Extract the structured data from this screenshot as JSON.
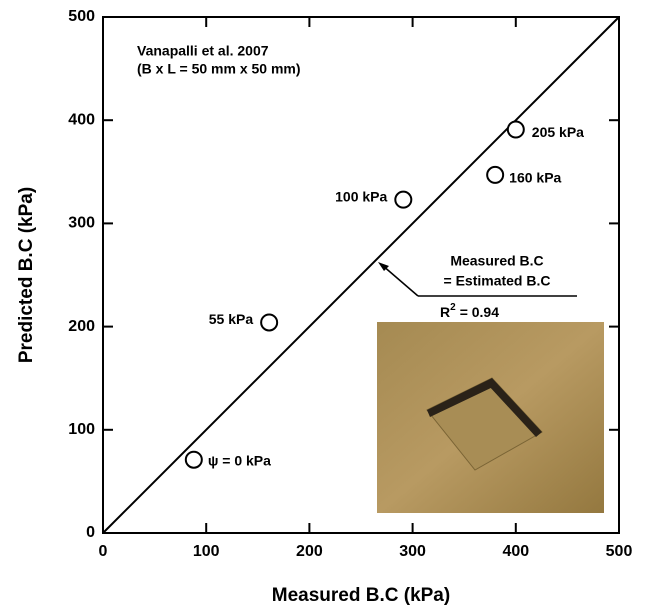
{
  "chart_data": {
    "type": "scatter",
    "x_label": "Measured B.C (kPa)",
    "y_label": "Predicted B.C (kPa)",
    "x": [
      88,
      161,
      291,
      380,
      400
    ],
    "values": [
      71,
      204,
      323,
      347,
      391
    ],
    "point_labels": [
      "ψ = 0 kPa",
      "55 kPa",
      "100 kPa",
      "160 kPa",
      "205 kPa"
    ],
    "xlim": [
      0,
      500
    ],
    "ylim": [
      0,
      500
    ],
    "xticks": [
      0,
      100,
      200,
      300,
      400,
      500
    ],
    "yticks": [
      0,
      100,
      200,
      300,
      400,
      500
    ],
    "reference_line": {
      "x": [
        0,
        500
      ],
      "y": [
        0,
        500
      ]
    },
    "annotations": {
      "source": "Vanapalli et al. 2007",
      "size": "(B x L = 50 mm x 50 mm)",
      "line_label_1": "Measured B.C",
      "line_label_2": "= Estimated B.C",
      "r2": {
        "base": "R",
        "sup": "2",
        "text": "= 0.94"
      }
    },
    "marker_color": "#000000"
  }
}
